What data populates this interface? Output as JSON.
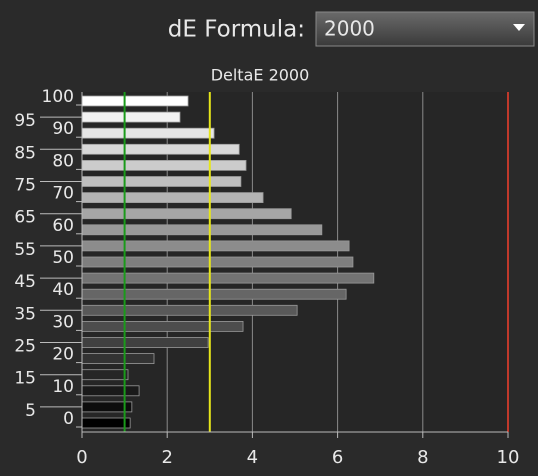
{
  "header": {
    "label": "dE Formula:",
    "selected": "2000"
  },
  "chart_data": {
    "type": "barh",
    "title": "DeltaE 2000",
    "categories": [
      0,
      5,
      10,
      15,
      20,
      25,
      30,
      35,
      40,
      45,
      50,
      55,
      60,
      65,
      70,
      75,
      80,
      85,
      90,
      95,
      100
    ],
    "values": [
      1.13,
      1.17,
      1.34,
      1.08,
      1.69,
      2.96,
      3.78,
      5.05,
      6.2,
      6.85,
      6.36,
      6.27,
      5.63,
      4.91,
      4.25,
      3.73,
      3.85,
      3.69,
      3.1,
      2.3,
      2.49
    ],
    "xlim": [
      0,
      10
    ],
    "xticks": [
      0,
      2,
      4,
      6,
      8,
      10
    ],
    "grid": true,
    "reference_lines": [
      {
        "value": 1,
        "color": "#1a9a1a"
      },
      {
        "value": 3,
        "color": "#e6e61a"
      },
      {
        "value": 10,
        "color": "#c0392b"
      }
    ]
  }
}
